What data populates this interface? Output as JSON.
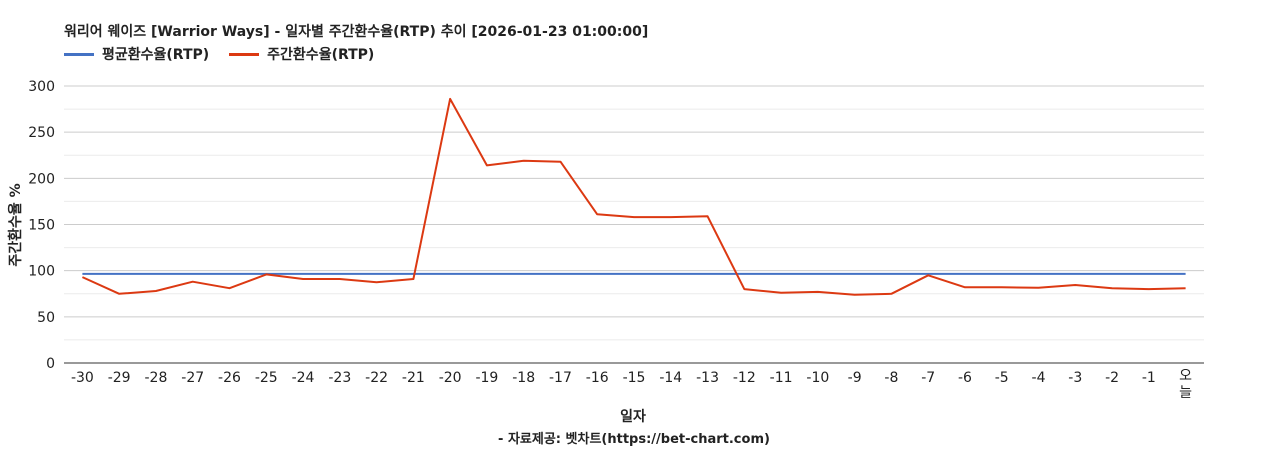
{
  "chart_data": {
    "type": "line",
    "title": "워리어 웨이즈 [Warrior Ways] - 일자별 주간환수율(RTP) 추이 [2026-01-23 01:00:00]",
    "xlabel": "일자",
    "ylabel": "주간환수율 %",
    "categories": [
      "-30",
      "-29",
      "-28",
      "-27",
      "-26",
      "-25",
      "-24",
      "-23",
      "-22",
      "-21",
      "-20",
      "-19",
      "-18",
      "-17",
      "-16",
      "-15",
      "-14",
      "-13",
      "-12",
      "-11",
      "-10",
      "-9",
      "-8",
      "-7",
      "-6",
      "-5",
      "-4",
      "-3",
      "-2",
      "-1",
      "오늘"
    ],
    "series": [
      {
        "name": "평균환수율(RTP)",
        "color": "#4472c4",
        "values": [
          96.5,
          96.5,
          96.5,
          96.5,
          96.5,
          96.5,
          96.5,
          96.5,
          96.5,
          96.5,
          96.5,
          96.5,
          96.5,
          96.5,
          96.5,
          96.5,
          96.5,
          96.5,
          96.5,
          96.5,
          96.5,
          96.5,
          96.5,
          96.5,
          96.5,
          96.5,
          96.5,
          96.5,
          96.5,
          96.5,
          96.5
        ]
      },
      {
        "name": "주간환수율(RTP)",
        "color": "#dc3912",
        "values": [
          93,
          75,
          78,
          88,
          81,
          96,
          91,
          91,
          87.5,
          91,
          286,
          214,
          219,
          218,
          161,
          158,
          158,
          159,
          80,
          76,
          77,
          74,
          75,
          95,
          82,
          82,
          81.5,
          84.5,
          81,
          80,
          81
        ]
      }
    ],
    "yticks": [
      0,
      50,
      100,
      150,
      200,
      250,
      300
    ],
    "ylim": [
      0,
      300
    ],
    "grid": true,
    "legend_position": "top-left"
  },
  "credit": "- 자료제공: 벳차트(https://bet-chart.com)"
}
